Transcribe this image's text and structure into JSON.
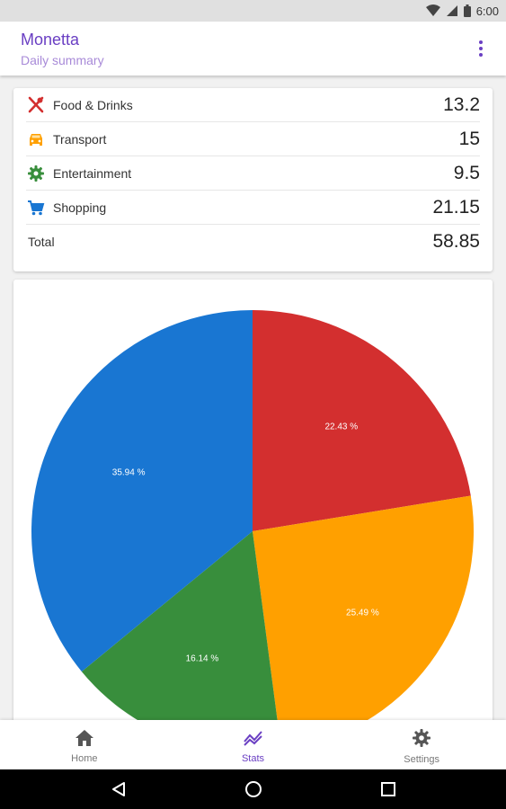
{
  "status_bar": {
    "time": "6:00"
  },
  "app_bar": {
    "title": "Monetta",
    "subtitle": "Daily summary"
  },
  "summary": {
    "items": [
      {
        "label": "Food & Drinks",
        "value": "13.2",
        "icon": "restaurant-icon",
        "color": "#d32f2f"
      },
      {
        "label": "Transport",
        "value": "15",
        "icon": "car-icon",
        "color": "#ffa000"
      },
      {
        "label": "Entertainment",
        "value": "9.5",
        "icon": "gear-icon",
        "color": "#388e3c"
      },
      {
        "label": "Shopping",
        "value": "21.15",
        "icon": "shopping-cart-icon",
        "color": "#1976d2"
      }
    ],
    "total": {
      "label": "Total",
      "value": "58.85"
    }
  },
  "chart_data": {
    "type": "pie",
    "slices": [
      {
        "label": "22.43 %",
        "value": 22.43,
        "color": "#d32f2f"
      },
      {
        "label": "25.49 %",
        "value": 25.49,
        "color": "#ffa000"
      },
      {
        "label": "16.14 %",
        "value": 16.14,
        "color": "#388e3c"
      },
      {
        "label": "35.94 %",
        "value": 35.94,
        "color": "#1976d2"
      }
    ]
  },
  "bottom_nav": {
    "items": [
      {
        "label": "Home",
        "icon": "home-icon"
      },
      {
        "label": "Stats",
        "icon": "stats-icon",
        "active": true
      },
      {
        "label": "Settings",
        "icon": "settings-icon"
      }
    ]
  },
  "colors": {
    "accent": "#6a3fc3"
  }
}
